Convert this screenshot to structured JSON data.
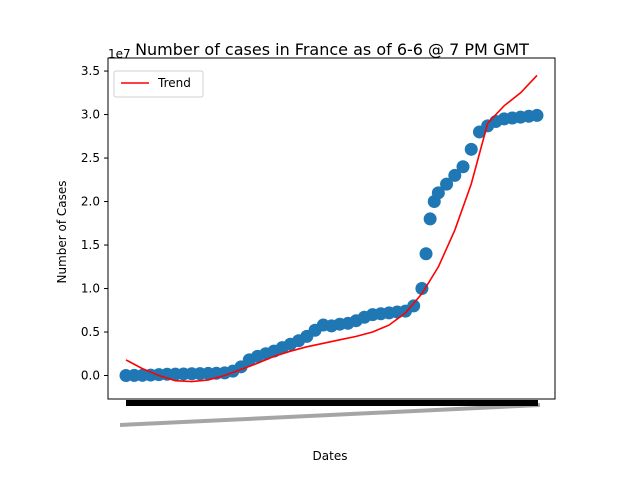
{
  "chart_data": {
    "type": "scatter",
    "title": "Number of cases in France as of 6-6 @ 7 PM GMT",
    "xlabel": "Dates",
    "ylabel": "Number of Cases",
    "y_offset_text": "1e7",
    "y_multiplier": 10000000,
    "ylim": [
      -0.27,
      3.65
    ],
    "y_ticks": [
      0.0,
      0.5,
      1.0,
      1.5,
      2.0,
      2.5,
      3.0,
      3.5
    ],
    "y_tick_labels": [
      "0.0",
      "0.5",
      "1.0",
      "1.5",
      "2.0",
      "2.5",
      "3.0",
      "3.5"
    ],
    "x_tick_labels_note": "",
    "grid": false,
    "legend_placement": "top-left",
    "series": [
      {
        "name": "",
        "kind": "scatter",
        "color": "#1f77b4",
        "points": [
          [
            0,
            0
          ],
          [
            0.02,
            0.001
          ],
          [
            0.04,
            0.002
          ],
          [
            0.06,
            0.005
          ],
          [
            0.08,
            0.01
          ],
          [
            0.1,
            0.014
          ],
          [
            0.12,
            0.016
          ],
          [
            0.14,
            0.018
          ],
          [
            0.16,
            0.02
          ],
          [
            0.18,
            0.022
          ],
          [
            0.2,
            0.024
          ],
          [
            0.22,
            0.026
          ],
          [
            0.24,
            0.03
          ],
          [
            0.26,
            0.05
          ],
          [
            0.28,
            0.1
          ],
          [
            0.3,
            0.18
          ],
          [
            0.32,
            0.22
          ],
          [
            0.34,
            0.25
          ],
          [
            0.36,
            0.28
          ],
          [
            0.38,
            0.32
          ],
          [
            0.4,
            0.36
          ],
          [
            0.42,
            0.4
          ],
          [
            0.44,
            0.45
          ],
          [
            0.46,
            0.52
          ],
          [
            0.48,
            0.58
          ],
          [
            0.5,
            0.57
          ],
          [
            0.52,
            0.59
          ],
          [
            0.54,
            0.6
          ],
          [
            0.56,
            0.63
          ],
          [
            0.58,
            0.67
          ],
          [
            0.6,
            0.7
          ],
          [
            0.62,
            0.71
          ],
          [
            0.64,
            0.72
          ],
          [
            0.66,
            0.73
          ],
          [
            0.68,
            0.74
          ],
          [
            0.7,
            0.8
          ],
          [
            0.72,
            1.0
          ],
          [
            0.73,
            1.4
          ],
          [
            0.74,
            1.8
          ],
          [
            0.75,
            2.0
          ],
          [
            0.76,
            2.1
          ],
          [
            0.78,
            2.2
          ],
          [
            0.8,
            2.3
          ],
          [
            0.82,
            2.4
          ],
          [
            0.84,
            2.6
          ],
          [
            0.86,
            2.8
          ],
          [
            0.88,
            2.87
          ],
          [
            0.9,
            2.92
          ],
          [
            0.92,
            2.95
          ],
          [
            0.94,
            2.96
          ],
          [
            0.96,
            2.97
          ],
          [
            0.98,
            2.98
          ],
          [
            1.0,
            2.99
          ]
        ]
      },
      {
        "name": "Trend",
        "kind": "line",
        "color": "#ff0000",
        "points": [
          [
            0,
            0.18
          ],
          [
            0.04,
            0.08
          ],
          [
            0.08,
            0.0
          ],
          [
            0.12,
            -0.06
          ],
          [
            0.16,
            -0.07
          ],
          [
            0.2,
            -0.05
          ],
          [
            0.24,
            0.0
          ],
          [
            0.28,
            0.07
          ],
          [
            0.32,
            0.14
          ],
          [
            0.36,
            0.22
          ],
          [
            0.4,
            0.28
          ],
          [
            0.44,
            0.33
          ],
          [
            0.48,
            0.37
          ],
          [
            0.52,
            0.41
          ],
          [
            0.56,
            0.45
          ],
          [
            0.6,
            0.5
          ],
          [
            0.64,
            0.58
          ],
          [
            0.68,
            0.72
          ],
          [
            0.72,
            0.94
          ],
          [
            0.76,
            1.25
          ],
          [
            0.8,
            1.67
          ],
          [
            0.84,
            2.2
          ],
          [
            0.88,
            2.9
          ],
          [
            0.92,
            3.1
          ],
          [
            0.96,
            3.25
          ],
          [
            1.0,
            3.45
          ]
        ]
      }
    ]
  }
}
